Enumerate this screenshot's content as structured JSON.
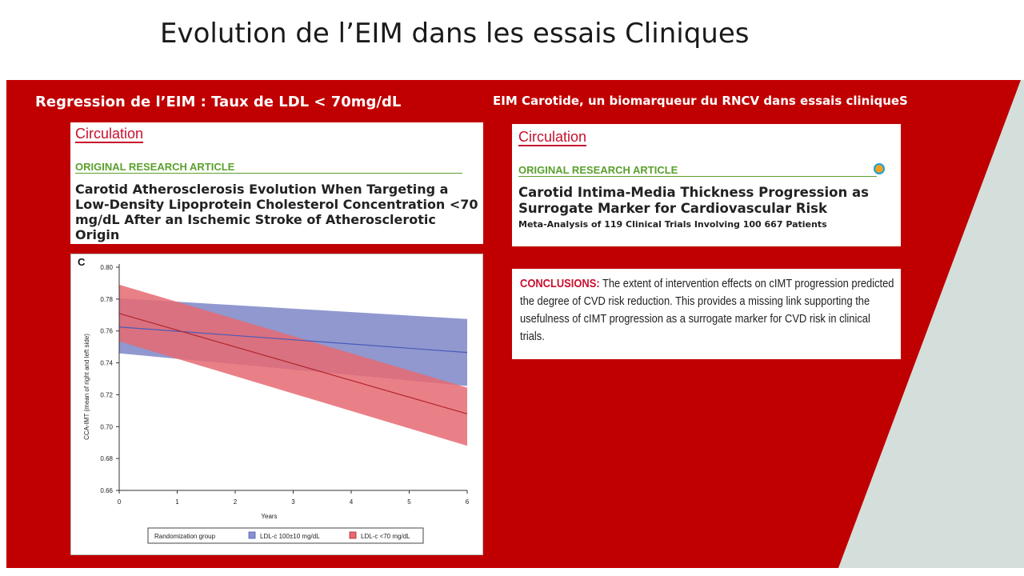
{
  "slide_title": "Evolution de l’EIM dans les essais Cliniques",
  "left_heading": "Regression de l’EIM : Taux de LDL  < 70mg/dL",
  "right_heading": "EIM Carotide, un biomarqueur du RNCV dans essais cliniqueS",
  "colors": {
    "accent_red": "#c00000",
    "panel_gray": "#d4dfdc",
    "journal_red": "#c8102e",
    "tag_green": "#5aa02c"
  },
  "article_left": {
    "journal": "Circulation",
    "tag": "ORIGINAL RESEARCH ARTICLE",
    "title": "Carotid Atherosclerosis Evolution When Targeting a Low-Density Lipoprotein Cholesterol Concentration <70 mg/dL After an Ischemic Stroke of Atherosclerotic Origin"
  },
  "article_right": {
    "journal": "Circulation",
    "tag": "ORIGINAL RESEARCH ARTICLE",
    "title": "Carotid Intima-Media Thickness Progression as Surrogate Marker for Cardiovascular Risk",
    "subtitle": "Meta-Analysis of 119 Clinical Trials Involving 100 667 Patients",
    "icon": "open-access-icon"
  },
  "conclusions": {
    "label": "CONCLUSIONS:",
    "text": " The extent of intervention effects on cIMT progression predicted the degree of CVD risk reduction. This provides a missing link supporting the usefulness of cIMT progression as a surrogate marker for CVD risk in clinical trials."
  },
  "chart_data": {
    "type": "line",
    "panel_label": "C",
    "xlabel": "Years",
    "ylabel": "CCA-IMT (mean of right and left side)",
    "xlim": [
      0,
      6
    ],
    "ylim": [
      0.66,
      0.8
    ],
    "x_ticks": [
      0,
      1,
      2,
      3,
      4,
      5,
      6
    ],
    "y_ticks": [
      "0.66",
      "0.68",
      "0.70",
      "0.72",
      "0.74",
      "0.76",
      "0.78",
      "0.80"
    ],
    "grid": false,
    "legend_title": "Randomization group",
    "legend_position": "bottom",
    "series": [
      {
        "name": "LDL-c 100±10 mg/dL",
        "color": "#4a5bb8",
        "fill": "#8a92cc",
        "x": [
          0,
          6
        ],
        "y": [
          0.7625,
          0.7465
        ],
        "lower": [
          0.746,
          0.7255
        ],
        "upper": [
          0.7805,
          0.7675
        ]
      },
      {
        "name": "LDL-c <70 mg/dL",
        "color": "#b3262d",
        "fill": "#e66a72",
        "x": [
          0,
          6
        ],
        "y": [
          0.771,
          0.708
        ],
        "lower": [
          0.7535,
          0.688
        ],
        "upper": [
          0.789,
          0.7245
        ]
      }
    ]
  }
}
